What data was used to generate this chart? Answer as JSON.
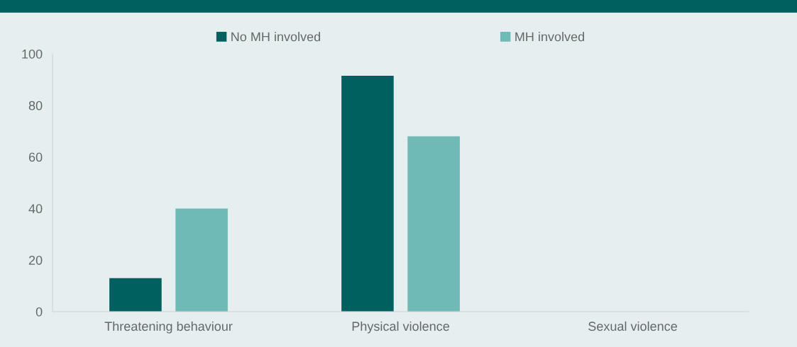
{
  "chart_data": {
    "type": "bar",
    "categories": [
      "Threatening behaviour",
      "Physical violence",
      "Sexual violence"
    ],
    "series": [
      {
        "name": "No MH involved",
        "color": "#005f5f",
        "values": [
          13,
          91.5,
          0
        ]
      },
      {
        "name": "MH involved",
        "color": "#6fb9b7",
        "values": [
          40,
          68,
          0
        ]
      }
    ],
    "ylim": [
      0,
      100
    ],
    "yticks": [
      0,
      20,
      40,
      60,
      80,
      100
    ],
    "grid": false,
    "legend": "top"
  }
}
